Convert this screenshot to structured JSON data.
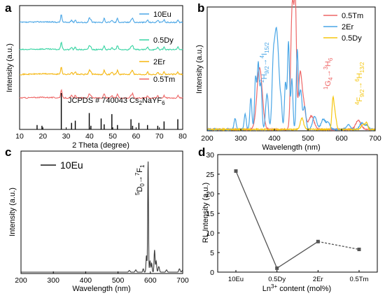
{
  "chart_data": [
    {
      "panel": "a",
      "type": "line",
      "xlabel": "2 Theta (degree)",
      "ylabel": "Intensity (a.u.)",
      "xlim": [
        10,
        80
      ],
      "xticks": [
        "10",
        "20",
        "30",
        "40",
        "50",
        "60",
        "70",
        "80"
      ],
      "reference_label": "JCPDS # 740043 Cs",
      "reference_label_2": "NaYF",
      "reference_sub_2": "2",
      "reference_sub_6": "6",
      "peak_positions": [
        27.9,
        32.3,
        33.9,
        39.9,
        40.6,
        46.3,
        49.6,
        52.0,
        57.8,
        58.5,
        64.9,
        69.3,
        72.0,
        77.9
      ],
      "reference_heights": [
        0.12,
        0.1,
        1.0,
        0.18,
        0.24,
        0.45,
        0.1,
        0.3,
        0.14,
        0.42,
        0.12,
        0.28,
        0.1,
        0.18,
        0.12,
        0.1,
        0.22,
        0.28
      ],
      "reference_positions": [
        17.5,
        19.6,
        27.9,
        32.3,
        33.9,
        39.9,
        40.6,
        45.0,
        46.3,
        49.6,
        52.0,
        57.8,
        58.5,
        61.2,
        64.9,
        69.3,
        72.0,
        77.9
      ],
      "series": [
        {
          "name": "10Eu",
          "color": "#4aa6e6",
          "offset": 0.86
        },
        {
          "name": "0.5Dy",
          "color": "#35d4a2",
          "offset": 0.64
        },
        {
          "name": "2Er",
          "color": "#f5b60f",
          "offset": 0.44
        },
        {
          "name": "0.5Tm",
          "color": "#ee6767",
          "offset": 0.25
        }
      ]
    },
    {
      "panel": "b",
      "type": "line",
      "xlabel": "Wavelength (nm)",
      "ylabel": "Intensity (a.u.)",
      "xlim": [
        200,
        700
      ],
      "xticks": [
        "200",
        "300",
        "400",
        "500",
        "600",
        "700"
      ],
      "series": [
        {
          "name": "0.5Tm",
          "color": "#ee6767",
          "peaks": [
            [
              356,
              0.55,
              8
            ],
            [
              452,
              0.88,
              4
            ],
            [
              458,
              0.62,
              4
            ],
            [
              463,
              0.85,
              3
            ],
            [
              476,
              0.45,
              5
            ],
            [
              486,
              0.24,
              6
            ],
            [
              510,
              0.12,
              8
            ],
            [
              650,
              0.08,
              8
            ]
          ]
        },
        {
          "name": "2Er",
          "color": "#4aa6e6",
          "peaks": [
            [
              283,
              0.1,
              3
            ],
            [
              313,
              0.14,
              3
            ],
            [
              330,
              0.28,
              3
            ],
            [
              344,
              0.46,
              3
            ],
            [
              352,
              0.58,
              3
            ],
            [
              360,
              0.4,
              3
            ],
            [
              378,
              0.32,
              4
            ],
            [
              397,
              0.62,
              4
            ],
            [
              405,
              0.72,
              4
            ],
            [
              412,
              0.5,
              4
            ],
            [
              420,
              0.22,
              3
            ],
            [
              433,
              0.42,
              3
            ],
            [
              442,
              0.78,
              3
            ],
            [
              452,
              0.45,
              3
            ],
            [
              468,
              0.7,
              3
            ],
            [
              478,
              0.35,
              4
            ],
            [
              490,
              0.2,
              4
            ],
            [
              520,
              0.12,
              6
            ],
            [
              545,
              0.09,
              6
            ],
            [
              560,
              0.06,
              6
            ],
            [
              620,
              0.04,
              6
            ],
            [
              660,
              0.06,
              6
            ],
            [
              675,
              0.04,
              5
            ]
          ]
        },
        {
          "name": "0.5Dy",
          "color": "#f5c60f",
          "peaks": [
            [
              482,
              0.1,
              5
            ],
            [
              574,
              0.24,
              3
            ],
            [
              580,
              0.14,
              4
            ],
            [
              665,
              0.05,
              6
            ],
            [
              675,
              0.05,
              3
            ]
          ]
        }
      ],
      "annotations": [
        {
          "text": "H",
          "sup_left": "2",
          "sub": "9/2",
          "arrow": "→",
          "text2": "I",
          "sup_left2": "4",
          "sub2": "15/2",
          "color": "#4aa6e6"
        },
        {
          "text": "G",
          "sup_left": "1",
          "sub": "4",
          "arrow": "→",
          "text2": "H",
          "sup_left2": "3",
          "sub2": "6",
          "color": "#ee6767"
        },
        {
          "text": "F",
          "sup_left": "4",
          "sub": "9/2",
          "arrow": "→",
          "text2": "H",
          "sup_left2": "6",
          "sub2": "13/2",
          "color": "#f5c60f"
        }
      ]
    },
    {
      "panel": "c",
      "type": "line",
      "xlabel": "Wavelength (nm)",
      "ylabel": "Intensity (a.u.)",
      "xlim": [
        200,
        700
      ],
      "xticks": [
        "200",
        "300",
        "400",
        "500",
        "600",
        "700"
      ],
      "series": [
        {
          "name": "10Eu",
          "color": "#3a3a3a",
          "peaks": [
            [
              535,
              0.015,
              2
            ],
            [
              555,
              0.02,
              2
            ],
            [
              578,
              0.03,
              1.5
            ],
            [
              588,
              0.15,
              1.5
            ],
            [
              593,
              1.0,
              1.2
            ],
            [
              599,
              0.1,
              1.5
            ],
            [
              604,
              0.08,
              1.5
            ],
            [
              613,
              0.2,
              1.5
            ],
            [
              618,
              0.1,
              1.5
            ],
            [
              626,
              0.05,
              2
            ],
            [
              650,
              0.02,
              2
            ],
            [
              690,
              0.03,
              2
            ],
            [
              700,
              0.02,
              2
            ]
          ]
        }
      ],
      "annotation": {
        "text": "D",
        "sup_left": "5",
        "sub": "0",
        "arrow": "→",
        "text2": "F",
        "sup_left2": "7",
        "sub2": "1"
      }
    },
    {
      "panel": "d",
      "type": "line",
      "xlabel": "Ln",
      "xlabel_sup": "3+",
      "xlabel_rest": " content (mol%)",
      "ylabel": "RL Intensity (a.u.)",
      "ylim": [
        0,
        30
      ],
      "yticks": [
        "0",
        "5",
        "10",
        "15",
        "20",
        "25",
        "30"
      ],
      "categories": [
        "10Eu",
        "0.5Dy",
        "2Er",
        "0.5Tm"
      ],
      "values": [
        25.8,
        1.0,
        7.8,
        5.8
      ],
      "color": "#555555"
    }
  ],
  "panel_labels": {
    "a": "a",
    "b": "b",
    "c": "c",
    "d": "d"
  },
  "colors": {
    "line_d": "#555555",
    "dashed_segment": "#555555"
  }
}
